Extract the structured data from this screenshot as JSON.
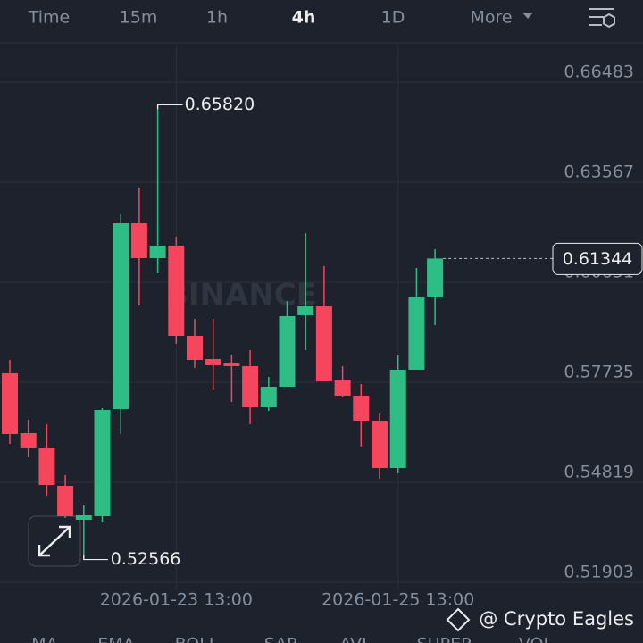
{
  "ui": {
    "tabs": [
      "Time",
      "15m",
      "1h",
      "4h",
      "1D",
      "More"
    ],
    "active_tab": 3,
    "indicators": [
      "MA",
      "EMA",
      "BOLL",
      "SAR",
      "AVL",
      "SUPER",
      "VOL"
    ],
    "watermark": "BINANCE",
    "credit": "@ Crypto Eagles"
  },
  "chart_data": {
    "type": "candlestick",
    "categories": [
      null,
      null,
      null,
      null,
      null,
      null,
      null,
      null,
      null,
      "2026-01-23 13:00",
      null,
      null,
      null,
      null,
      null,
      null,
      null,
      null,
      null,
      null,
      null,
      "2026-01-25 13:00",
      null,
      null
    ],
    "open": [
      0.57996,
      0.56251,
      0.55809,
      0.54715,
      0.53726,
      0.5383,
      0.56954,
      0.62369,
      0.61354,
      0.61719,
      0.59089,
      0.58412,
      0.58282,
      0.58204,
      0.57006,
      0.57605,
      0.59688,
      0.59948,
      0.57787,
      0.57345,
      0.56616,
      0.55236,
      0.581,
      0.60209
    ],
    "high": [
      0.58386,
      0.56642,
      0.56512,
      0.55028,
      0.54142,
      0.5698,
      0.6263,
      0.63411,
      0.6582,
      0.61979,
      0.59584,
      0.59584,
      0.58542,
      0.58672,
      0.57891,
      0.60104,
      0.62083,
      0.6112,
      0.58204,
      0.57683,
      0.56824,
      0.58516,
      0.61068,
      0.61614
    ],
    "low": [
      0.55939,
      0.55548,
      0.54429,
      0.53778,
      0.52566,
      0.53648,
      0.56225,
      0.59974,
      0.60912,
      0.58855,
      0.58152,
      0.57501,
      0.57162,
      0.56512,
      0.56902,
      0.57605,
      0.58672,
      0.57761,
      0.57293,
      0.55861,
      0.54923,
      0.5508,
      0.581,
      0.59401
    ],
    "close": [
      0.56225,
      0.55809,
      0.54741,
      0.5383,
      0.53856,
      0.56928,
      0.62369,
      0.61354,
      0.61719,
      0.59089,
      0.58386,
      0.5823,
      0.58204,
      0.57006,
      0.57605,
      0.59662,
      0.59948,
      0.57761,
      0.57345,
      0.56616,
      0.55236,
      0.581,
      0.60209,
      0.61344
    ],
    "up_color": "#2ebd85",
    "down_color": "#f6465d",
    "ylim": [
      0.51695,
      0.67576
    ],
    "yticks": [
      0.66483,
      0.63567,
      0.60651,
      0.57735,
      0.54819,
      0.51903
    ],
    "grid": true,
    "annotations": [
      {
        "label": "0.65820",
        "value": 0.6582,
        "index": 8
      },
      {
        "label": "0.52566",
        "value": 0.52566,
        "index": 4
      }
    ]
  }
}
